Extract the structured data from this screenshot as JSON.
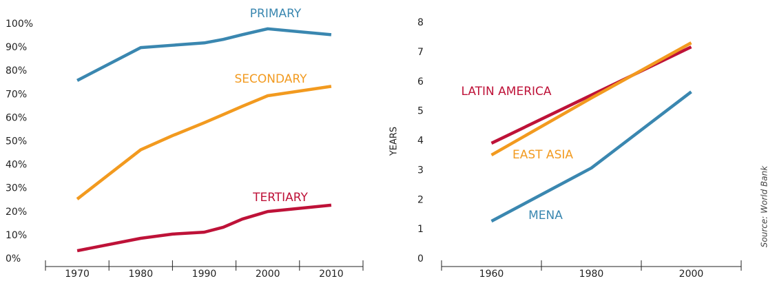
{
  "chart_data": [
    {
      "type": "line",
      "x": [
        1970,
        1980,
        1985,
        1990,
        1993,
        1996,
        2000,
        2010
      ],
      "xlim": [
        1965,
        2015
      ],
      "xticks": [
        1970,
        1980,
        1990,
        2000,
        2010
      ],
      "ylim": [
        0,
        100
      ],
      "yticks": [
        {
          "value": 0,
          "label": "0%"
        },
        {
          "value": 10,
          "label": "10%"
        },
        {
          "value": 20,
          "label": "20%"
        },
        {
          "value": 30,
          "label": "30%"
        },
        {
          "value": 40,
          "label": "40%"
        },
        {
          "value": 50,
          "label": "50%"
        },
        {
          "value": 60,
          "label": "60%"
        },
        {
          "value": 70,
          "label": "70%"
        },
        {
          "value": 80,
          "label": "80%"
        },
        {
          "value": 90,
          "label": "90%"
        },
        {
          "value": 100,
          "label": "100%"
        }
      ],
      "series": [
        {
          "name": "PRIMARY",
          "color": "#3a87b0",
          "values": [
            76,
            90,
            91,
            92,
            93.5,
            95.5,
            98,
            95.5
          ]
        },
        {
          "name": "SECONDARY",
          "color": "#f29a1f",
          "values": [
            25.5,
            46.5,
            52.5,
            58,
            61.5,
            65,
            69.5,
            73.5
          ]
        },
        {
          "name": "TERTIARY",
          "color": "#be1238",
          "values": [
            3.5,
            8.8,
            10.6,
            11.4,
            13.5,
            17,
            20.2,
            22.9
          ]
        }
      ]
    },
    {
      "type": "line",
      "y_label": "YEARS",
      "x": [
        1960,
        1980,
        2000
      ],
      "xlim": [
        1950,
        2010
      ],
      "xticks": [
        1960,
        1980,
        2000
      ],
      "ylim": [
        0,
        8
      ],
      "yticks": [
        0,
        1,
        2,
        3,
        4,
        5,
        6,
        7,
        8
      ],
      "series": [
        {
          "name": "LATIN AMERICA",
          "color": "#be1238",
          "values": [
            3.92,
            5.55,
            7.18
          ]
        },
        {
          "name": "EAST ASIA",
          "color": "#f29a1f",
          "values": [
            3.52,
            5.45,
            7.32
          ]
        },
        {
          "name": "MENA",
          "color": "#3a87b0",
          "values": [
            1.28,
            3.08,
            5.66
          ]
        }
      ]
    }
  ],
  "source": "Source: World Bank"
}
